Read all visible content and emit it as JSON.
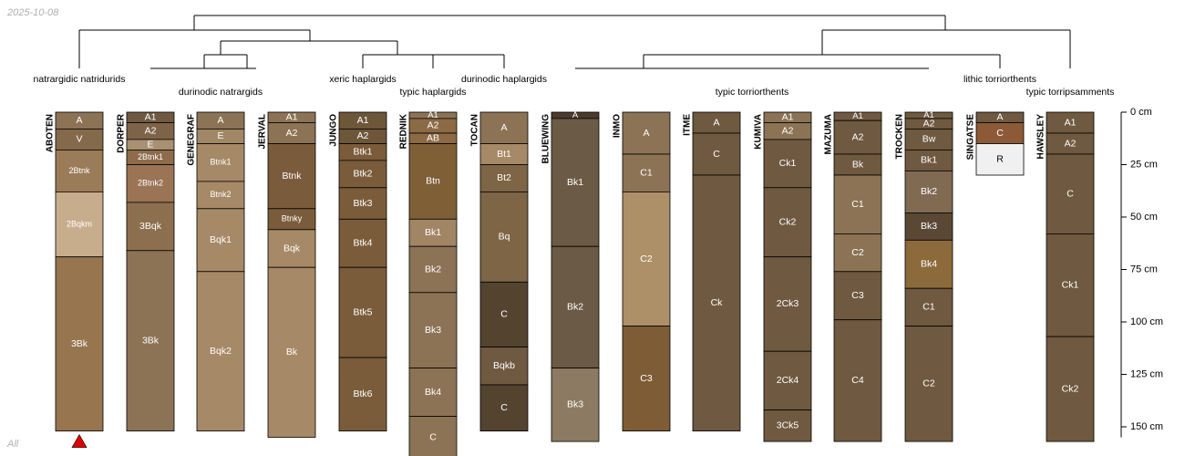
{
  "date_stamp": "2025-10-08",
  "footer_label": "All",
  "chart_data": {
    "type": "soil-profile-sketch",
    "depth_unit": "cm",
    "depth_ticks": [
      0,
      25,
      50,
      75,
      100,
      125,
      150
    ],
    "depth_range": [
      0,
      155
    ],
    "taxa": [
      {
        "name": "natrargidic natridurids",
        "profiles": [
          "ABOTEN"
        ]
      },
      {
        "name": "durinodic natrargids",
        "profiles": [
          "DORPER",
          "GENEGRAF",
          "JERVAL"
        ]
      },
      {
        "name": "xeric haplargids",
        "profiles": [
          "JUNGO"
        ]
      },
      {
        "name": "typic haplargids",
        "profiles": [
          "REDNIK"
        ]
      },
      {
        "name": "durinodic haplargids",
        "profiles": [
          "TOCAN"
        ]
      },
      {
        "name": "typic torriorthents",
        "profiles": [
          "BLUEWING",
          "INMO",
          "ITME",
          "KUMIVA",
          "MAZUMA",
          "TROCKEN"
        ]
      },
      {
        "name": "lithic torriorthents",
        "profiles": [
          "SINGATSE"
        ]
      },
      {
        "name": "typic torripsamments",
        "profiles": [
          "HAWSLEY"
        ]
      }
    ],
    "dendrogram_leaf_order": [
      "ABOTEN",
      "DORPER",
      "GENEGRAF",
      "JERVAL",
      "JUNGO",
      "REDNIK",
      "TOCAN",
      "BLUEWING",
      "INMO",
      "ITME",
      "KUMIVA",
      "MAZUMA",
      "TROCKEN",
      "SINGATSE",
      "HAWSLEY"
    ],
    "profiles": [
      {
        "name": "ABOTEN",
        "marker": "duripan-depth",
        "horizons": [
          {
            "name": "A",
            "top": 0,
            "bottom": 8,
            "color": "#8c7356"
          },
          {
            "name": "V",
            "top": 8,
            "bottom": 18,
            "color": "#85694b"
          },
          {
            "name": "2Btnk",
            "top": 18,
            "bottom": 38,
            "color": "#9a7c59"
          },
          {
            "name": "2Bqkm",
            "top": 38,
            "bottom": 69,
            "color": "#c8ad8c"
          },
          {
            "name": "3Bk",
            "top": 69,
            "bottom": 152,
            "color": "#96754f"
          }
        ]
      },
      {
        "name": "DORPER",
        "horizons": [
          {
            "name": "A1",
            "top": 0,
            "bottom": 5,
            "color": "#6f5941"
          },
          {
            "name": "A2",
            "top": 5,
            "bottom": 13,
            "color": "#7d6448"
          },
          {
            "name": "E",
            "top": 13,
            "bottom": 18,
            "color": "#a89072"
          },
          {
            "name": "2Btnk1",
            "top": 18,
            "bottom": 25,
            "color": "#8d6b4b"
          },
          {
            "name": "2Btnk2",
            "top": 25,
            "bottom": 43,
            "color": "#9a7455"
          },
          {
            "name": "3Bqk",
            "top": 43,
            "bottom": 66,
            "color": "#8c6f4e"
          },
          {
            "name": "3Bk",
            "top": 66,
            "bottom": 152,
            "color": "#8c7355"
          }
        ]
      },
      {
        "name": "GENEGRAF",
        "horizons": [
          {
            "name": "A",
            "top": 0,
            "bottom": 8,
            "color": "#8c7355"
          },
          {
            "name": "E",
            "top": 8,
            "bottom": 15,
            "color": "#a08766"
          },
          {
            "name": "Btnk1",
            "top": 15,
            "bottom": 33,
            "color": "#a68966"
          },
          {
            "name": "Btnk2",
            "top": 33,
            "bottom": 46,
            "color": "#a68966"
          },
          {
            "name": "Bqk1",
            "top": 46,
            "bottom": 76,
            "color": "#a68966"
          },
          {
            "name": "Bqk2",
            "top": 76,
            "bottom": 152,
            "color": "#a68966"
          }
        ]
      },
      {
        "name": "JERVAL",
        "horizons": [
          {
            "name": "A1",
            "top": 0,
            "bottom": 5,
            "color": "#8c7355"
          },
          {
            "name": "A2",
            "top": 5,
            "bottom": 15,
            "color": "#8c7355"
          },
          {
            "name": "Btnk",
            "top": 15,
            "bottom": 46,
            "color": "#7a5c3d"
          },
          {
            "name": "Btnky",
            "top": 46,
            "bottom": 56,
            "color": "#7a5c3d"
          },
          {
            "name": "Bqk",
            "top": 56,
            "bottom": 74,
            "color": "#a68966"
          },
          {
            "name": "Bk",
            "top": 74,
            "bottom": 155,
            "color": "#a68966"
          }
        ]
      },
      {
        "name": "JUNGO",
        "horizons": [
          {
            "name": "A1",
            "top": 0,
            "bottom": 8,
            "color": "#6e5639"
          },
          {
            "name": "A2",
            "top": 8,
            "bottom": 15,
            "color": "#6e5639"
          },
          {
            "name": "Btk1",
            "top": 15,
            "bottom": 23,
            "color": "#7a5c3a"
          },
          {
            "name": "Btk2",
            "top": 23,
            "bottom": 36,
            "color": "#7a5c3a"
          },
          {
            "name": "Btk3",
            "top": 36,
            "bottom": 51,
            "color": "#7a5c3a"
          },
          {
            "name": "Btk4",
            "top": 51,
            "bottom": 74,
            "color": "#7a5c3a"
          },
          {
            "name": "Btk5",
            "top": 74,
            "bottom": 117,
            "color": "#7a5c3a"
          },
          {
            "name": "Btk6",
            "top": 117,
            "bottom": 152,
            "color": "#7a5c3a"
          }
        ]
      },
      {
        "name": "REDNIK",
        "horizons": [
          {
            "name": "A1",
            "top": 0,
            "bottom": 3,
            "color": "#8c7355"
          },
          {
            "name": "A2",
            "top": 3,
            "bottom": 10,
            "color": "#8c6a45"
          },
          {
            "name": "AB",
            "top": 10,
            "bottom": 15,
            "color": "#8c6a45"
          },
          {
            "name": "Btn",
            "top": 15,
            "bottom": 51,
            "color": "#7f5f36"
          },
          {
            "name": "Bk1",
            "top": 51,
            "bottom": 64,
            "color": "#a18565"
          },
          {
            "name": "Bk2",
            "top": 64,
            "bottom": 86,
            "color": "#8c7355"
          },
          {
            "name": "Bk3",
            "top": 86,
            "bottom": 122,
            "color": "#8c7355"
          },
          {
            "name": "Bk4",
            "top": 122,
            "bottom": 145,
            "color": "#8c7355"
          },
          {
            "name": "C",
            "top": 145,
            "bottom": 165,
            "color": "#8c7355"
          }
        ]
      },
      {
        "name": "TOCAN",
        "horizons": [
          {
            "name": "A",
            "top": 0,
            "bottom": 15,
            "color": "#8c7355"
          },
          {
            "name": "Bt1",
            "top": 15,
            "bottom": 25,
            "color": "#a68966"
          },
          {
            "name": "Bt2",
            "top": 25,
            "bottom": 38,
            "color": "#7d6545"
          },
          {
            "name": "Bq",
            "top": 38,
            "bottom": 81,
            "color": "#7d6545"
          },
          {
            "name": "C",
            "top": 81,
            "bottom": 112,
            "color": "#54432f"
          },
          {
            "name": "Bqkb",
            "top": 112,
            "bottom": 130,
            "color": "#6f5940"
          },
          {
            "name": "C",
            "top": 130,
            "bottom": 152,
            "color": "#54432f"
          }
        ]
      },
      {
        "name": "BLUEWING",
        "horizons": [
          {
            "name": "A",
            "top": 0,
            "bottom": 3,
            "color": "#4b3b2c"
          },
          {
            "name": "Bk1",
            "top": 3,
            "bottom": 64,
            "color": "#6b5a45"
          },
          {
            "name": "Bk2",
            "top": 64,
            "bottom": 122,
            "color": "#6b5a45"
          },
          {
            "name": "Bk3",
            "top": 122,
            "bottom": 157,
            "color": "#8c7a62"
          }
        ]
      },
      {
        "name": "INMO",
        "horizons": [
          {
            "name": "A",
            "top": 0,
            "bottom": 20,
            "color": "#8c7355"
          },
          {
            "name": "C1",
            "top": 20,
            "bottom": 38,
            "color": "#8c7355"
          },
          {
            "name": "C2",
            "top": 38,
            "bottom": 102,
            "color": "#ad9068"
          },
          {
            "name": "C3",
            "top": 102,
            "bottom": 152,
            "color": "#7d5c36"
          }
        ]
      },
      {
        "name": "ITME",
        "horizons": [
          {
            "name": "A",
            "top": 0,
            "bottom": 10,
            "color": "#6f5940"
          },
          {
            "name": "C",
            "top": 10,
            "bottom": 30,
            "color": "#6f5940"
          },
          {
            "name": "Ck",
            "top": 30,
            "bottom": 152,
            "color": "#6f5940"
          }
        ]
      },
      {
        "name": "KUMIVA",
        "horizons": [
          {
            "name": "A1",
            "top": 0,
            "bottom": 5,
            "color": "#8c7355"
          },
          {
            "name": "A2",
            "top": 5,
            "bottom": 13,
            "color": "#8c7355"
          },
          {
            "name": "Ck1",
            "top": 13,
            "bottom": 36,
            "color": "#6f5940"
          },
          {
            "name": "Ck2",
            "top": 36,
            "bottom": 69,
            "color": "#6f5940"
          },
          {
            "name": "2Ck3",
            "top": 69,
            "bottom": 114,
            "color": "#6f5940"
          },
          {
            "name": "2Ck4",
            "top": 114,
            "bottom": 142,
            "color": "#6f5940"
          },
          {
            "name": "3Ck5",
            "top": 142,
            "bottom": 157,
            "color": "#6f5940"
          }
        ]
      },
      {
        "name": "MAZUMA",
        "horizons": [
          {
            "name": "A1",
            "top": 0,
            "bottom": 4,
            "color": "#6f5940"
          },
          {
            "name": "A2",
            "top": 4,
            "bottom": 20,
            "color": "#6f5940"
          },
          {
            "name": "Bk",
            "top": 20,
            "bottom": 30,
            "color": "#6f5940"
          },
          {
            "name": "C1",
            "top": 30,
            "bottom": 58,
            "color": "#8c7355"
          },
          {
            "name": "C2",
            "top": 58,
            "bottom": 76,
            "color": "#8c7355"
          },
          {
            "name": "C3",
            "top": 76,
            "bottom": 99,
            "color": "#6f5940"
          },
          {
            "name": "C4",
            "top": 99,
            "bottom": 157,
            "color": "#6f5940"
          }
        ]
      },
      {
        "name": "TROCKEN",
        "horizons": [
          {
            "name": "A1",
            "top": 0,
            "bottom": 3,
            "color": "#6f5940"
          },
          {
            "name": "A2",
            "top": 3,
            "bottom": 8,
            "color": "#6f5940"
          },
          {
            "name": "Bw",
            "top": 8,
            "bottom": 18,
            "color": "#6f5940"
          },
          {
            "name": "Bk1",
            "top": 18,
            "bottom": 28,
            "color": "#6f5940"
          },
          {
            "name": "Bk2",
            "top": 28,
            "bottom": 48,
            "color": "#806a52"
          },
          {
            "name": "Bk3",
            "top": 48,
            "bottom": 61,
            "color": "#5a4835"
          },
          {
            "name": "Bk4",
            "top": 61,
            "bottom": 84,
            "color": "#8c6a3c"
          },
          {
            "name": "C1",
            "top": 84,
            "bottom": 102,
            "color": "#6f5940"
          },
          {
            "name": "C2",
            "top": 102,
            "bottom": 157,
            "color": "#6f5940"
          }
        ]
      },
      {
        "name": "SINGATSE",
        "horizons": [
          {
            "name": "A",
            "top": 0,
            "bottom": 5,
            "color": "#6f5940"
          },
          {
            "name": "C",
            "top": 5,
            "bottom": 15,
            "color": "#8c5a36"
          },
          {
            "name": "R",
            "top": 15,
            "bottom": 30,
            "color": "#f0f0f0"
          }
        ]
      },
      {
        "name": "HAWSLEY",
        "horizons": [
          {
            "name": "A1",
            "top": 0,
            "bottom": 10,
            "color": "#6f5940"
          },
          {
            "name": "A2",
            "top": 10,
            "bottom": 20,
            "color": "#6f5940"
          },
          {
            "name": "C",
            "top": 20,
            "bottom": 58,
            "color": "#6f5940"
          },
          {
            "name": "Ck1",
            "top": 58,
            "bottom": 107,
            "color": "#6f5940"
          },
          {
            "name": "Ck2",
            "top": 107,
            "bottom": 157,
            "color": "#6f5940"
          }
        ]
      }
    ]
  }
}
